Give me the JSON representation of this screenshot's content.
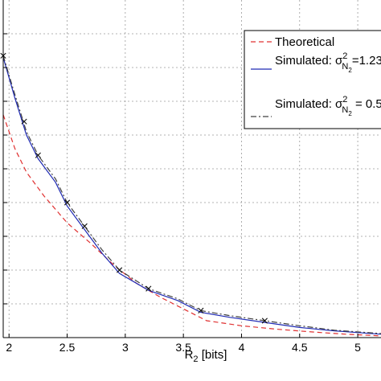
{
  "chart_data": {
    "type": "line",
    "title": "",
    "xlabel": {
      "main": "R",
      "sub": "2",
      "unit": " [bits]"
    },
    "ylabel": "",
    "xlim": [
      1.95,
      5.2
    ],
    "ylim": [
      0,
      1
    ],
    "xticks": [
      2,
      2.5,
      3,
      3.5,
      4,
      4.5,
      5
    ],
    "xtick_labels": [
      "2",
      "2.5",
      "3",
      "3.5",
      "4",
      "4.5",
      "5"
    ],
    "yticks": [
      0.1,
      0.2,
      0.3,
      0.4,
      0.5,
      0.6,
      0.7,
      0.8,
      0.9
    ],
    "grid": true,
    "legend_position": "top-right",
    "colors": {
      "theoretical": "#e03030",
      "simulated_a": "#1f2ab4",
      "simulated_b": "#404040",
      "grid": "#9a9a9a"
    },
    "series": [
      {
        "name": "Theoretical",
        "style": "dashed",
        "color": "#e03030",
        "x": [
          1.95,
          2.05,
          2.15,
          2.3,
          2.5,
          2.7,
          2.9,
          3.1,
          3.3,
          3.5,
          3.7,
          4.0,
          4.3,
          4.6,
          4.9,
          5.2
        ],
        "y": [
          0.66,
          0.56,
          0.49,
          0.42,
          0.34,
          0.28,
          0.215,
          0.16,
          0.12,
          0.085,
          0.05,
          0.035,
          0.025,
          0.017,
          0.01,
          0.005
        ]
      },
      {
        "name": "Simulated: σ²_N₂=1.23",
        "legend": {
          "prefix": "Simulated: σ",
          "sup": "2",
          "sub": "N",
          "subsub": "2",
          "suffix": "=1.23"
        },
        "style": "solid",
        "color": "#1f2ab4",
        "x": [
          1.95,
          2.05,
          2.15,
          2.25,
          2.4,
          2.5,
          2.65,
          2.8,
          2.95,
          3.2,
          3.45,
          3.65,
          3.9,
          4.2,
          4.5,
          4.8,
          5.2
        ],
        "y": [
          0.83,
          0.71,
          0.6,
          0.53,
          0.46,
          0.39,
          0.32,
          0.25,
          0.19,
          0.14,
          0.11,
          0.075,
          0.06,
          0.045,
          0.03,
          0.02,
          0.01
        ]
      },
      {
        "name": "Simulated: σ²_N₂ = 0.5",
        "legend": {
          "prefix": "Simulated: σ",
          "sup": "2",
          "sub": "N",
          "subsub": "2",
          "suffix": " = 0.5"
        },
        "style": "dashdot",
        "marker": "x",
        "color": "#404040",
        "x": [
          1.95,
          2.05,
          2.15,
          2.25,
          2.4,
          2.5,
          2.65,
          2.8,
          2.95,
          3.2,
          3.45,
          3.65,
          3.9,
          4.2,
          4.5,
          4.8,
          5.2
        ],
        "y": [
          0.835,
          0.72,
          0.61,
          0.54,
          0.47,
          0.4,
          0.33,
          0.26,
          0.2,
          0.145,
          0.115,
          0.08,
          0.065,
          0.05,
          0.035,
          0.022,
          0.012
        ],
        "markers_x": [
          1.95,
          2.13,
          2.25,
          2.5,
          2.65,
          2.95,
          3.2,
          3.65,
          4.2
        ],
        "markers_y": [
          0.835,
          0.64,
          0.54,
          0.4,
          0.33,
          0.2,
          0.145,
          0.08,
          0.05
        ]
      }
    ]
  }
}
